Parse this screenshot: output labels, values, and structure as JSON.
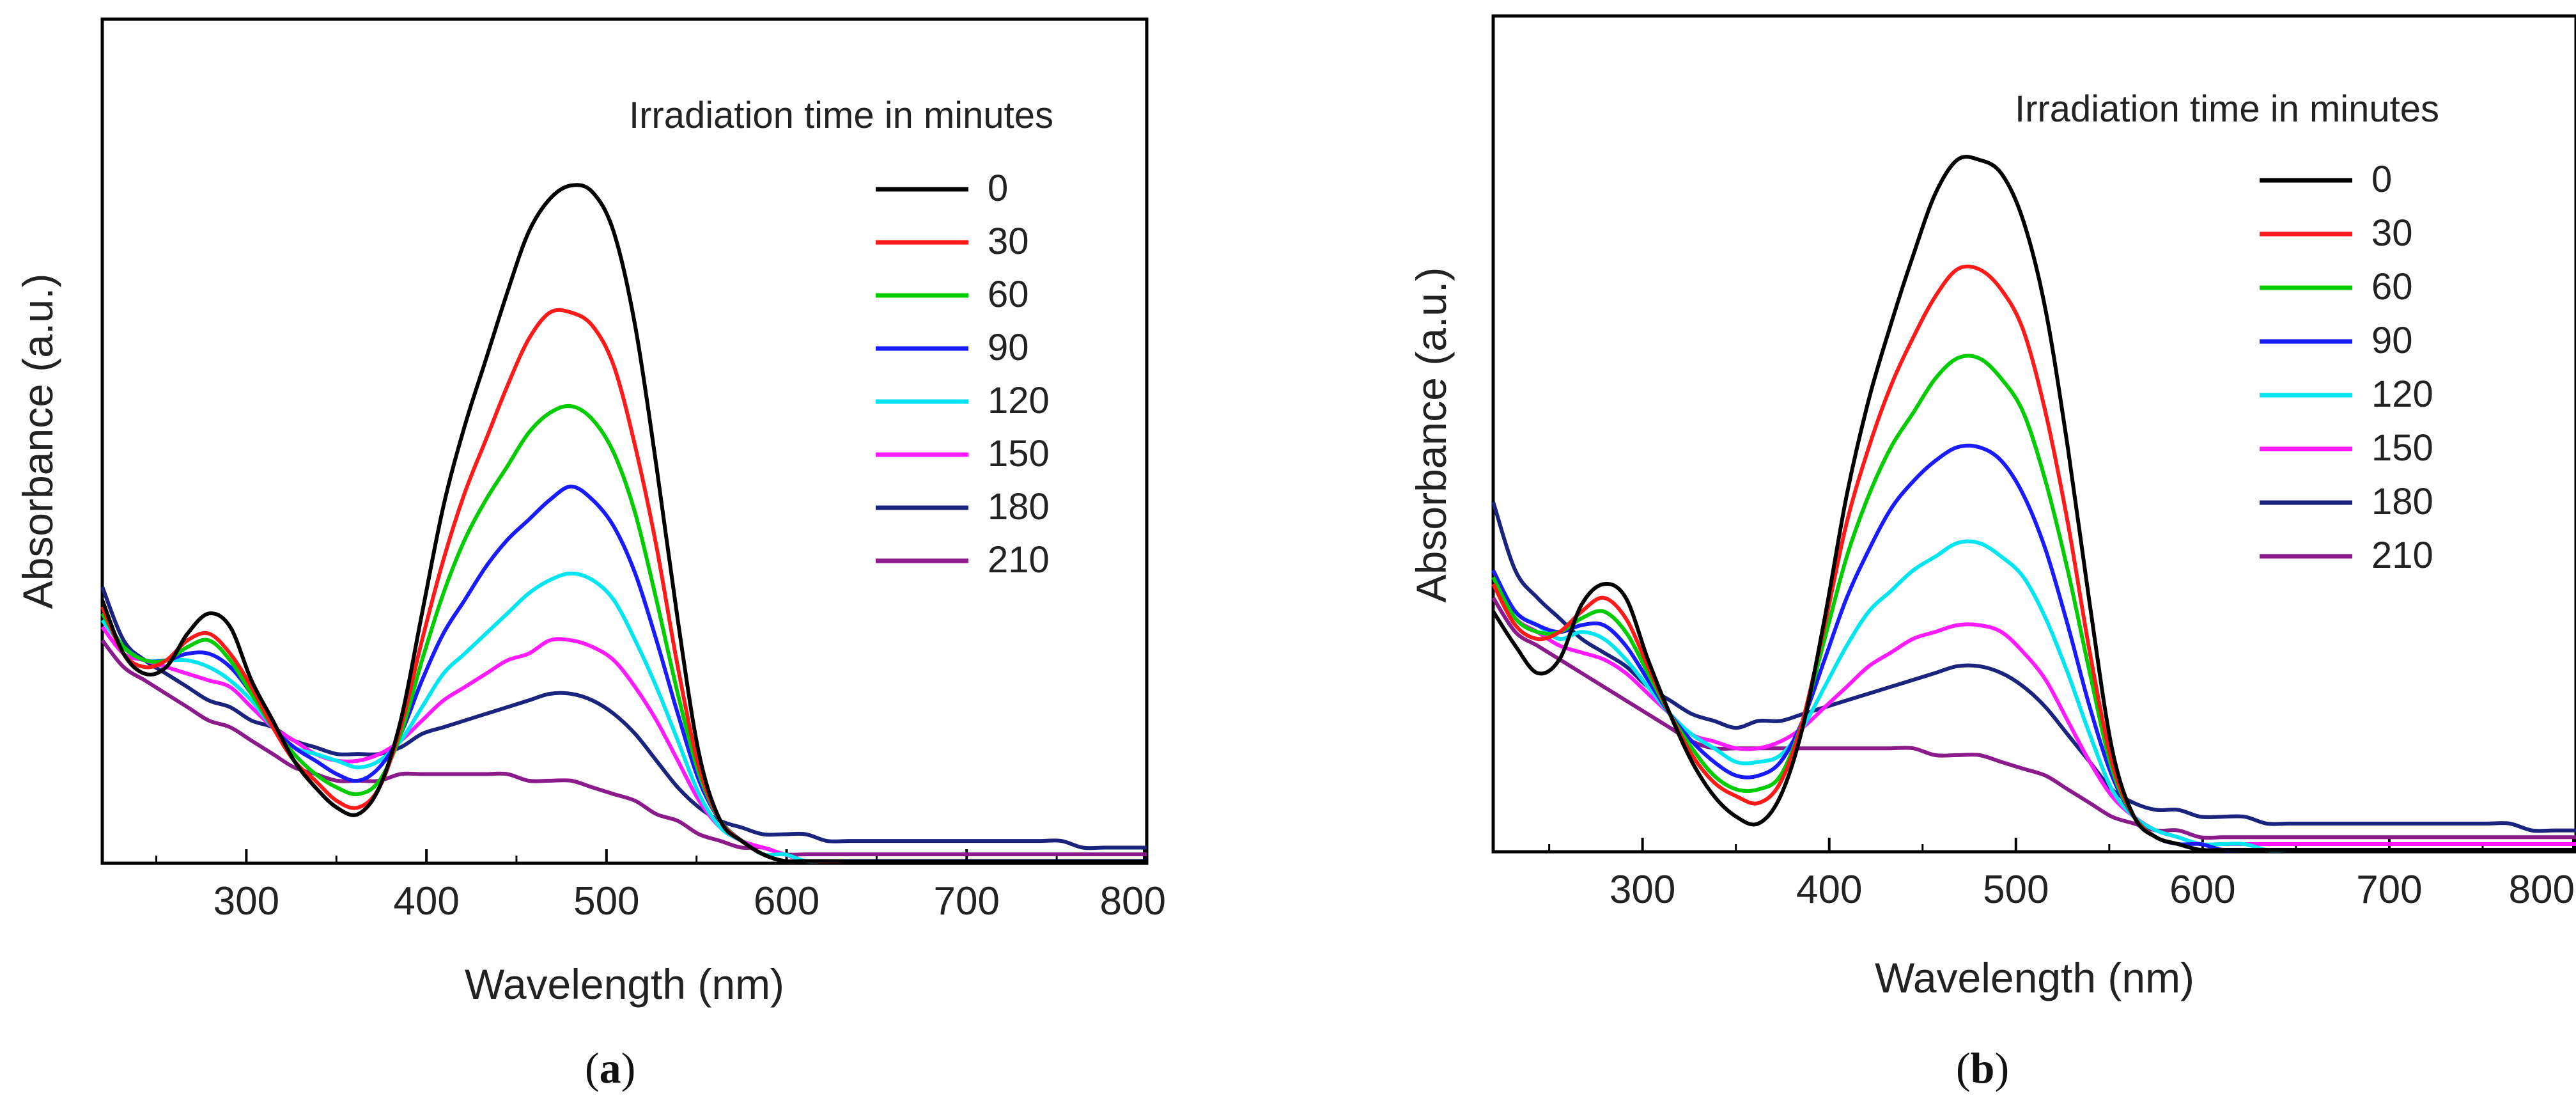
{
  "chart_data": [
    {
      "type": "line",
      "panel": "a",
      "caption_letter": "a",
      "xlabel": "Wavelength (nm)",
      "ylabel": "Absorbance (a.u.)",
      "xlim": [
        220,
        800
      ],
      "ylim": [
        0,
        1.0
      ],
      "xticks": [
        300,
        400,
        500,
        600,
        700,
        800
      ],
      "y_tick_labels": false,
      "legend_title": "Irradiation time in minutes",
      "legend_position": "top-right",
      "series": [
        {
          "name": "0",
          "color": "#000000",
          "values": [
            0.38,
            0.3,
            0.27,
            0.28,
            0.33,
            0.36,
            0.34,
            0.26,
            0.2,
            0.14,
            0.1,
            0.07,
            0.06,
            0.1,
            0.2,
            0.36,
            0.52,
            0.64,
            0.74,
            0.84,
            0.93,
            0.98,
            1.0,
            0.99,
            0.93,
            0.79,
            0.58,
            0.35,
            0.15,
            0.05,
            0.02,
            0.0,
            -0.01,
            -0.01,
            -0.01,
            -0.02,
            -0.02,
            -0.02,
            -0.02,
            -0.02,
            -0.02,
            -0.02,
            -0.02,
            -0.02,
            -0.02,
            -0.02,
            -0.02,
            -0.02,
            -0.02,
            -0.02
          ]
        },
        {
          "name": "30",
          "color": "#ff1a1a",
          "values": [
            0.37,
            0.3,
            0.28,
            0.29,
            0.32,
            0.33,
            0.3,
            0.25,
            0.19,
            0.14,
            0.11,
            0.08,
            0.07,
            0.1,
            0.19,
            0.32,
            0.44,
            0.54,
            0.62,
            0.7,
            0.77,
            0.81,
            0.81,
            0.79,
            0.73,
            0.61,
            0.46,
            0.28,
            0.13,
            0.05,
            0.02,
            0.0,
            -0.01,
            -0.01,
            -0.02,
            -0.02,
            -0.02,
            -0.02,
            -0.02,
            -0.02,
            -0.02,
            -0.02,
            -0.02,
            -0.02,
            -0.02,
            -0.02,
            -0.02,
            -0.02,
            -0.02,
            -0.02
          ]
        },
        {
          "name": "60",
          "color": "#00cc00",
          "values": [
            0.36,
            0.31,
            0.29,
            0.29,
            0.31,
            0.32,
            0.29,
            0.24,
            0.19,
            0.15,
            0.12,
            0.1,
            0.09,
            0.11,
            0.18,
            0.29,
            0.39,
            0.47,
            0.53,
            0.58,
            0.63,
            0.66,
            0.67,
            0.65,
            0.6,
            0.51,
            0.38,
            0.24,
            0.12,
            0.05,
            0.02,
            0.0,
            -0.01,
            -0.01,
            -0.01,
            -0.02,
            -0.02,
            -0.02,
            -0.02,
            -0.02,
            -0.02,
            -0.02,
            -0.02,
            -0.02,
            -0.02,
            -0.02,
            -0.02,
            -0.02,
            -0.02,
            -0.02
          ]
        },
        {
          "name": "90",
          "color": "#1a1aff",
          "values": [
            0.36,
            0.31,
            0.29,
            0.29,
            0.3,
            0.3,
            0.28,
            0.24,
            0.19,
            0.16,
            0.14,
            0.12,
            0.11,
            0.13,
            0.18,
            0.26,
            0.33,
            0.38,
            0.43,
            0.47,
            0.5,
            0.53,
            0.55,
            0.53,
            0.49,
            0.42,
            0.32,
            0.21,
            0.11,
            0.05,
            0.02,
            0.0,
            -0.01,
            -0.01,
            -0.01,
            -0.01,
            -0.01,
            -0.01,
            -0.01,
            -0.01,
            -0.01,
            -0.01,
            -0.01,
            -0.01,
            -0.01,
            -0.01,
            -0.01,
            -0.01,
            -0.01,
            -0.01
          ]
        },
        {
          "name": "120",
          "color": "#00e6f0",
          "values": [
            0.35,
            0.31,
            0.29,
            0.29,
            0.29,
            0.28,
            0.26,
            0.23,
            0.19,
            0.16,
            0.15,
            0.14,
            0.13,
            0.14,
            0.17,
            0.22,
            0.27,
            0.3,
            0.33,
            0.36,
            0.39,
            0.41,
            0.42,
            0.41,
            0.38,
            0.32,
            0.25,
            0.17,
            0.09,
            0.04,
            0.02,
            0.0,
            0.0,
            -0.01,
            -0.01,
            -0.01,
            -0.01,
            -0.01,
            -0.01,
            -0.01,
            -0.01,
            -0.01,
            -0.01,
            -0.01,
            -0.01,
            -0.01,
            -0.01,
            -0.01,
            -0.01,
            -0.01
          ]
        },
        {
          "name": "150",
          "color": "#ff1aff",
          "values": [
            0.34,
            0.3,
            0.29,
            0.28,
            0.27,
            0.26,
            0.25,
            0.22,
            0.19,
            0.17,
            0.15,
            0.14,
            0.14,
            0.15,
            0.17,
            0.2,
            0.23,
            0.25,
            0.27,
            0.29,
            0.3,
            0.32,
            0.32,
            0.31,
            0.29,
            0.25,
            0.2,
            0.14,
            0.08,
            0.04,
            0.02,
            0.01,
            0.0,
            -0.01,
            -0.01,
            -0.01,
            -0.01,
            -0.01,
            -0.01,
            -0.01,
            -0.01,
            -0.01,
            -0.01,
            -0.01,
            -0.01,
            -0.01,
            -0.01,
            -0.01,
            -0.01,
            -0.01
          ]
        },
        {
          "name": "180",
          "color": "#1a237e",
          "values": [
            0.4,
            0.32,
            0.29,
            0.27,
            0.25,
            0.23,
            0.22,
            0.2,
            0.19,
            0.17,
            0.16,
            0.15,
            0.15,
            0.15,
            0.16,
            0.18,
            0.19,
            0.2,
            0.21,
            0.22,
            0.23,
            0.24,
            0.24,
            0.23,
            0.21,
            0.18,
            0.14,
            0.1,
            0.07,
            0.05,
            0.04,
            0.03,
            0.03,
            0.03,
            0.02,
            0.02,
            0.02,
            0.02,
            0.02,
            0.02,
            0.02,
            0.02,
            0.02,
            0.02,
            0.02,
            0.02,
            0.01,
            0.01,
            0.01,
            0.01
          ]
        },
        {
          "name": "210",
          "color": "#8b1a8b",
          "values": [
            0.32,
            0.28,
            0.26,
            0.24,
            0.22,
            0.2,
            0.19,
            0.17,
            0.15,
            0.13,
            0.12,
            0.11,
            0.11,
            0.11,
            0.12,
            0.12,
            0.12,
            0.12,
            0.12,
            0.12,
            0.11,
            0.11,
            0.11,
            0.1,
            0.09,
            0.08,
            0.06,
            0.05,
            0.03,
            0.02,
            0.01,
            0.01,
            0.0,
            0.0,
            0.0,
            0.0,
            0.0,
            0.0,
            0.0,
            0.0,
            0.0,
            0.0,
            0.0,
            0.0,
            0.0,
            0.0,
            0.0,
            0.0,
            0.0,
            0.0
          ]
        }
      ]
    },
    {
      "type": "line",
      "panel": "b",
      "caption_letter": "b",
      "xlabel": "Wavelength (nm)",
      "ylabel": "Absorbance (a.u.)",
      "xlim": [
        220,
        800
      ],
      "ylim": [
        0,
        1.0
      ],
      "xticks": [
        300,
        400,
        500,
        600,
        700,
        800
      ],
      "y_tick_labels": false,
      "legend_title": "Irradiation time in minutes",
      "legend_position": "top-right",
      "series": [
        {
          "name": "0",
          "color": "#000000",
          "values": [
            0.34,
            0.29,
            0.25,
            0.27,
            0.35,
            0.38,
            0.36,
            0.27,
            0.19,
            0.12,
            0.07,
            0.04,
            0.03,
            0.07,
            0.17,
            0.33,
            0.51,
            0.65,
            0.76,
            0.86,
            0.95,
            1.0,
            1.0,
            0.98,
            0.91,
            0.78,
            0.58,
            0.35,
            0.14,
            0.04,
            0.01,
            0.0,
            -0.01,
            -0.01,
            -0.01,
            -0.01,
            -0.01,
            -0.01,
            -0.01,
            -0.01,
            -0.01,
            -0.01,
            -0.01,
            -0.01,
            -0.01,
            -0.01,
            -0.01,
            -0.01,
            -0.01,
            -0.01
          ]
        },
        {
          "name": "30",
          "color": "#ff1a1a",
          "values": [
            0.38,
            0.32,
            0.3,
            0.31,
            0.34,
            0.36,
            0.33,
            0.26,
            0.19,
            0.13,
            0.09,
            0.07,
            0.06,
            0.09,
            0.18,
            0.32,
            0.47,
            0.58,
            0.67,
            0.74,
            0.8,
            0.84,
            0.84,
            0.81,
            0.75,
            0.63,
            0.47,
            0.28,
            0.12,
            0.04,
            0.01,
            0.0,
            -0.01,
            -0.01,
            -0.01,
            -0.01,
            -0.01,
            -0.01,
            -0.01,
            -0.01,
            -0.01,
            -0.01,
            -0.01,
            -0.01,
            -0.01,
            -0.01,
            -0.01,
            -0.01,
            -0.01,
            -0.01
          ]
        },
        {
          "name": "60",
          "color": "#00cc00",
          "values": [
            0.39,
            0.33,
            0.31,
            0.31,
            0.33,
            0.34,
            0.31,
            0.25,
            0.19,
            0.14,
            0.1,
            0.08,
            0.08,
            0.1,
            0.18,
            0.3,
            0.42,
            0.51,
            0.58,
            0.63,
            0.68,
            0.71,
            0.71,
            0.68,
            0.63,
            0.53,
            0.4,
            0.25,
            0.11,
            0.04,
            0.01,
            0.0,
            -0.01,
            -0.01,
            -0.01,
            -0.01,
            -0.01,
            -0.01,
            -0.01,
            -0.01,
            -0.01,
            -0.01,
            -0.01,
            -0.01,
            -0.01,
            -0.01,
            -0.01,
            -0.01,
            -0.01,
            -0.01
          ]
        },
        {
          "name": "90",
          "color": "#1a1aff",
          "values": [
            0.4,
            0.34,
            0.32,
            0.31,
            0.32,
            0.32,
            0.29,
            0.24,
            0.19,
            0.15,
            0.12,
            0.1,
            0.1,
            0.12,
            0.18,
            0.27,
            0.36,
            0.43,
            0.49,
            0.53,
            0.56,
            0.58,
            0.58,
            0.56,
            0.51,
            0.43,
            0.32,
            0.2,
            0.1,
            0.04,
            0.01,
            0.0,
            0.0,
            -0.01,
            -0.01,
            -0.01,
            -0.01,
            -0.01,
            -0.01,
            -0.01,
            -0.01,
            -0.01,
            -0.01,
            -0.01,
            -0.01,
            -0.01,
            -0.01,
            -0.01,
            -0.01,
            -0.01
          ]
        },
        {
          "name": "120",
          "color": "#00e6f0",
          "values": [
            0.4,
            0.34,
            0.32,
            0.3,
            0.31,
            0.3,
            0.27,
            0.23,
            0.19,
            0.16,
            0.14,
            0.12,
            0.12,
            0.13,
            0.17,
            0.23,
            0.29,
            0.34,
            0.37,
            0.4,
            0.42,
            0.44,
            0.44,
            0.42,
            0.39,
            0.33,
            0.25,
            0.16,
            0.08,
            0.04,
            0.02,
            0.01,
            0.0,
            0.0,
            0.0,
            -0.01,
            -0.01,
            -0.01,
            -0.01,
            -0.01,
            -0.01,
            -0.01,
            -0.01,
            -0.01,
            -0.01,
            -0.01,
            -0.01,
            -0.01,
            -0.01,
            -0.01
          ]
        },
        {
          "name": "150",
          "color": "#ff1aff",
          "values": [
            0.38,
            0.33,
            0.31,
            0.29,
            0.28,
            0.27,
            0.25,
            0.22,
            0.19,
            0.16,
            0.15,
            0.14,
            0.14,
            0.15,
            0.17,
            0.2,
            0.23,
            0.26,
            0.28,
            0.3,
            0.31,
            0.32,
            0.32,
            0.31,
            0.28,
            0.24,
            0.18,
            0.12,
            0.07,
            0.04,
            0.02,
            0.01,
            0.0,
            0.0,
            0.0,
            0.0,
            0.0,
            0.0,
            0.0,
            0.0,
            0.0,
            0.0,
            0.0,
            0.0,
            0.0,
            0.0,
            0.0,
            0.0,
            0.0,
            0.0
          ]
        },
        {
          "name": "180",
          "color": "#1a237e",
          "values": [
            0.5,
            0.4,
            0.36,
            0.33,
            0.3,
            0.28,
            0.26,
            0.23,
            0.21,
            0.19,
            0.18,
            0.17,
            0.18,
            0.18,
            0.19,
            0.2,
            0.21,
            0.22,
            0.23,
            0.24,
            0.25,
            0.26,
            0.26,
            0.25,
            0.23,
            0.2,
            0.16,
            0.12,
            0.08,
            0.06,
            0.05,
            0.05,
            0.04,
            0.04,
            0.04,
            0.03,
            0.03,
            0.03,
            0.03,
            0.03,
            0.03,
            0.03,
            0.03,
            0.03,
            0.03,
            0.03,
            0.03,
            0.02,
            0.02,
            0.02
          ]
        },
        {
          "name": "210",
          "color": "#8b1a8b",
          "values": [
            0.36,
            0.31,
            0.29,
            0.27,
            0.25,
            0.23,
            0.21,
            0.19,
            0.17,
            0.15,
            0.14,
            0.14,
            0.14,
            0.14,
            0.14,
            0.14,
            0.14,
            0.14,
            0.14,
            0.14,
            0.13,
            0.13,
            0.13,
            0.12,
            0.11,
            0.1,
            0.08,
            0.06,
            0.04,
            0.03,
            0.02,
            0.02,
            0.01,
            0.01,
            0.01,
            0.01,
            0.01,
            0.01,
            0.01,
            0.01,
            0.01,
            0.01,
            0.01,
            0.01,
            0.01,
            0.01,
            0.01,
            0.01,
            0.01,
            0.01
          ]
        }
      ]
    }
  ]
}
